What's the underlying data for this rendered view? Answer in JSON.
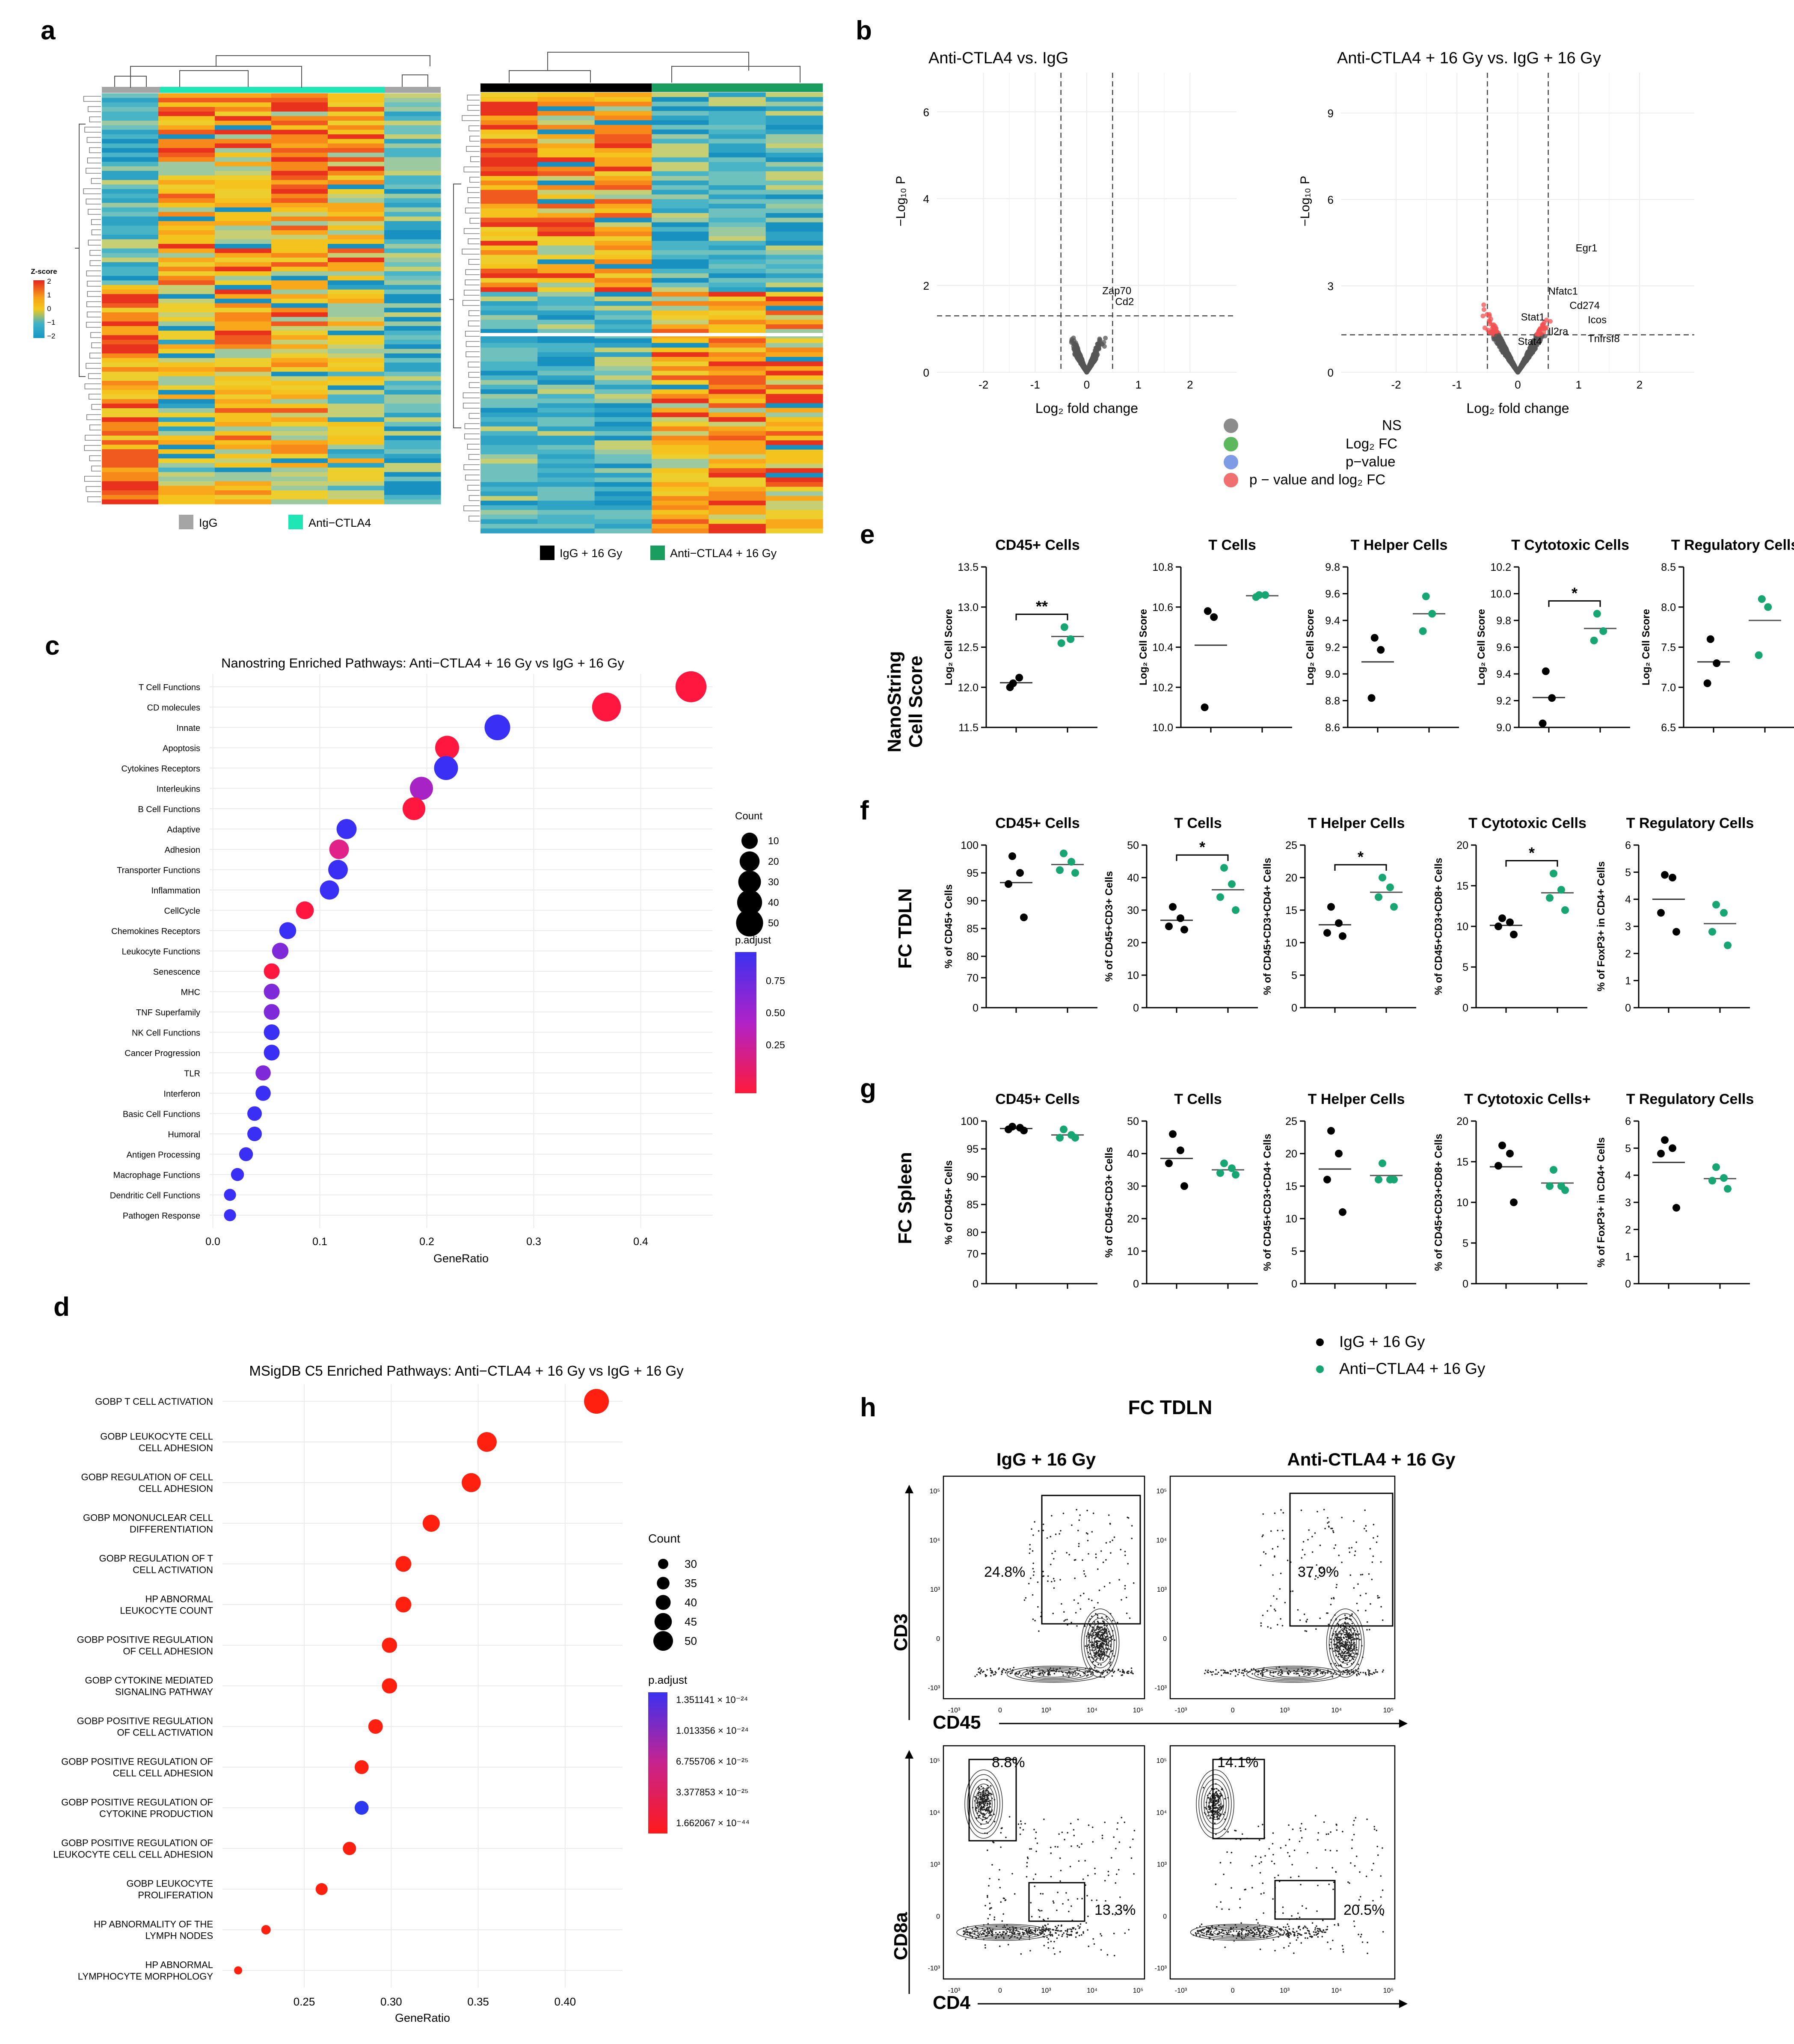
{
  "panel_labels": {
    "a": "a",
    "b": "b",
    "c": "c",
    "d": "d",
    "e": "e",
    "f": "f",
    "g": "g",
    "h": "h"
  },
  "panel_a": {
    "zscore_title": "Z-score",
    "zscore_ticks": [
      "2",
      "1",
      "0",
      "−1",
      "−2"
    ],
    "legend_left": [
      "IgG",
      "Anti−CTLA4"
    ],
    "legend_right": [
      "IgG + 16 Gy",
      "Anti−CTLA4 + 16 Gy"
    ],
    "colors": {
      "igg": "#a5a5a5",
      "anti": "#1ee6b4",
      "igg16": "#000000",
      "anti16": "#1a9e5f"
    }
  },
  "panel_b": {
    "title_left": "Anti-CTLA4 vs. IgG",
    "title_right": "Anti-CTLA4 + 16 Gy vs. IgG + 16 Gy",
    "ylabel": "−Log₁₀ P",
    "xlabel": "Log₂ fold change",
    "xticks": [
      "-2",
      "-1",
      "0",
      "1",
      "2"
    ],
    "yticks_left": [
      "0",
      "2",
      "4",
      "6"
    ],
    "yticks_right": [
      "0",
      "3",
      "6",
      "9"
    ],
    "genes_left": [
      "Zap70",
      "Cd2"
    ],
    "genes_right": [
      "Egr1",
      "Nfatc1",
      "Cd274",
      "Icos",
      "Stat1",
      "Il2ra",
      "Tnfrsf8",
      "Stat4"
    ],
    "legend": [
      "NS",
      "Log₂ FC",
      "p−value",
      "p − value and log₂ FC"
    ],
    "legend_colors": [
      "#8c8c8c",
      "#5cb85c",
      "#7e9be6",
      "#f07070"
    ]
  },
  "panel_c": {
    "title": "Nanostring Enriched Pathways: Anti−CTLA4 + 16 Gy vs IgG + 16 Gy",
    "xlabel": "GeneRatio",
    "count_title": "Count",
    "padj_title": "p.adjust",
    "count_labels": [
      "10",
      "20",
      "30",
      "40",
      "50"
    ],
    "padj_labels": [
      "0.75",
      "0.50",
      "0.25"
    ]
  },
  "panel_d": {
    "title": "MSigDB C5 Enriched Pathways: Anti−CTLA4 + 16 Gy vs IgG + 16 Gy",
    "xlabel": "GeneRatio",
    "count_title": "Count",
    "padj_title": "p.adjust",
    "count_labels": [
      "30",
      "35",
      "40",
      "45",
      "50"
    ],
    "padj_labels": [
      "1.351141 × 10⁻²⁴",
      "1.013356 × 10⁻²⁴",
      "6.755706 × 10⁻²⁵",
      "3.377853 × 10⁻²⁵",
      "1.662067 × 10⁻⁴⁴"
    ]
  },
  "panel_e": {
    "row_label_1": "NanoString",
    "row_label_2": "Cell Score",
    "ylabel": "Log₂ Cell Score",
    "plots": [
      {
        "title": "CD45+ Cells",
        "yticks": [
          "11.5",
          "12.0",
          "12.5",
          "13.0",
          "13.5"
        ],
        "sig": "**"
      },
      {
        "title": "T Cells",
        "yticks": [
          "10.0",
          "10.2",
          "10.4",
          "10.6",
          "10.8"
        ],
        "sig": ""
      },
      {
        "title": "T Helper Cells",
        "yticks": [
          "8.6",
          "8.8",
          "9.0",
          "9.2",
          "9.4",
          "9.6",
          "9.8"
        ],
        "sig": ""
      },
      {
        "title": "T Cytotoxic Cells",
        "yticks": [
          "9.0",
          "9.2",
          "9.4",
          "9.6",
          "9.8",
          "10.0",
          "10.2"
        ],
        "sig": "*"
      },
      {
        "title": "T Regulatory Cells",
        "yticks": [
          "6.5",
          "7.0",
          "7.5",
          "8.0",
          "8.5"
        ],
        "sig": ""
      }
    ]
  },
  "panel_f": {
    "row_label": "FC TDLN",
    "plots": [
      {
        "title": "CD45+ Cells",
        "ylabel": "% of CD45+ Cells",
        "yticks": [
          "0",
          "70",
          "80",
          "85",
          "90",
          "95",
          "100"
        ],
        "sig": ""
      },
      {
        "title": "T Cells",
        "ylabel": "% of CD45+CD3+ Cells",
        "yticks": [
          "0",
          "10",
          "20",
          "30",
          "40",
          "50"
        ],
        "sig": "*"
      },
      {
        "title": "T Helper Cells",
        "ylabel": "% of CD45+CD3+CD4+ Cells",
        "yticks": [
          "0",
          "5",
          "10",
          "15",
          "20",
          "25"
        ],
        "sig": "*"
      },
      {
        "title": "T Cytotoxic Cells",
        "ylabel": "% of CD45+CD3+CD8+ Cells",
        "yticks": [
          "0",
          "5",
          "10",
          "15",
          "20"
        ],
        "sig": "*"
      },
      {
        "title": "T Regulatory Cells",
        "ylabel": "% of FoxP3+ in CD4+ Cells",
        "yticks": [
          "0",
          "1",
          "2",
          "3",
          "4",
          "5",
          "6"
        ],
        "sig": ""
      }
    ]
  },
  "panel_g": {
    "row_label": "FC Spleen",
    "plots": [
      {
        "title": "CD45+ Cells",
        "ylabel": "% of CD45+ Cells",
        "yticks": [
          "0",
          "70",
          "80",
          "85",
          "90",
          "95",
          "100"
        ]
      },
      {
        "title": "T Cells",
        "ylabel": "% of CD45+CD3+ Cells",
        "yticks": [
          "0",
          "10",
          "20",
          "30",
          "40",
          "50"
        ]
      },
      {
        "title": "T Helper Cells",
        "ylabel": "% of CD45+CD3+CD4+ Cells",
        "yticks": [
          "0",
          "5",
          "10",
          "15",
          "20",
          "25"
        ]
      },
      {
        "title": "T Cytotoxic Cells+",
        "ylabel": "% of CD45+CD3+CD8+ Cells",
        "yticks": [
          "0",
          "5",
          "10",
          "15",
          "20"
        ]
      },
      {
        "title": "T Regulatory Cells",
        "ylabel": "% of FoxP3+ in CD4+ Cells",
        "yticks": [
          "0",
          "1",
          "2",
          "3",
          "4",
          "5",
          "6"
        ]
      }
    ],
    "legend": [
      "IgG + 16 Gy",
      "Anti−CTLA4 + 16 Gy"
    ],
    "colors": {
      "igg": "#000000",
      "anti": "#17a673"
    }
  },
  "panel_h": {
    "title": "FC TDLN",
    "col_titles": [
      "IgG + 16 Gy",
      "Anti-CTLA4 + 16 Gy"
    ],
    "axis_top_y": "CD3",
    "axis_top_x": "CD45",
    "axis_bot_y": "CD8a",
    "axis_bot_x": "CD4",
    "pct_top": [
      "24.8%",
      "37.9%"
    ],
    "pct_bot_cd8": [
      "8.8%",
      "14.1%"
    ],
    "pct_bot_cd4": [
      "13.3%",
      "20.5%"
    ],
    "flow_ticks_x": [
      "-10³",
      "0",
      "10³",
      "10⁴",
      "10⁵"
    ],
    "flow_ticks_y": [
      "10⁵",
      "10⁴",
      "10³",
      "0",
      "-10³"
    ]
  },
  "chart_data": [
    {
      "type": "scatter",
      "title": "Nanostring Enriched Pathways: Anti−CTLA4 + 16 Gy vs IgG + 16 Gy",
      "xlabel": "GeneRatio",
      "ylabel": "",
      "xlim": [
        0,
        0.47
      ],
      "xticks": [
        0,
        0.1,
        0.2,
        0.3,
        0.4
      ],
      "categories": [
        "T Cell Functions",
        "CD molecules",
        "Innate",
        "Apoptosis",
        "Cytokines Receptors",
        "Interleukins",
        "B Cell Functions",
        "Adaptive",
        "Adhesion",
        "Transporter Functions",
        "Inflammation",
        "CellCycle",
        "Chemokines Receptors",
        "Leukocyte Functions",
        "Senescence",
        "MHC",
        "TNF Superfamily",
        "NK Cell Functions",
        "Cancer Progression",
        "TLR",
        "Interferon",
        "Basic Cell Functions",
        "Humoral",
        "Antigen Processing",
        "Macrophage Functions",
        "Dendritic Cell Functions",
        "Pathogen Response"
      ],
      "x": [
        0.447,
        0.368,
        0.266,
        0.219,
        0.218,
        0.195,
        0.188,
        0.125,
        0.118,
        0.117,
        0.109,
        0.086,
        0.07,
        0.063,
        0.055,
        0.055,
        0.055,
        0.055,
        0.055,
        0.047,
        0.047,
        0.039,
        0.039,
        0.031,
        0.023,
        0.016,
        0.016
      ],
      "count": [
        57,
        47,
        34,
        28,
        28,
        25,
        24,
        16,
        15,
        15,
        14,
        11,
        9,
        8,
        7,
        7,
        7,
        7,
        7,
        6,
        6,
        5,
        5,
        4,
        3,
        2,
        2
      ],
      "p_adjust": [
        0.05,
        0.05,
        0.99,
        0.05,
        0.99,
        0.6,
        0.05,
        0.99,
        0.25,
        0.99,
        0.99,
        0.1,
        0.99,
        0.8,
        0.1,
        0.75,
        0.75,
        0.99,
        0.99,
        0.7,
        0.95,
        0.99,
        0.99,
        0.99,
        0.99,
        0.99,
        0.99
      ]
    },
    {
      "type": "scatter",
      "title": "MSigDB C5 Enriched Pathways: Anti−CTLA4 + 16 Gy vs IgG + 16 Gy",
      "xlabel": "GeneRatio",
      "ylabel": "",
      "xlim": [
        0.2,
        0.435
      ],
      "xticks": [
        0.25,
        0.3,
        0.35,
        0.4
      ],
      "categories": [
        "GOBP T CELL ACTIVATION",
        "GOBP LEUKOCYTE CELL CELL ADHESION",
        "GOBP REGULATION OF CELL CELL ADHESION",
        "GOBP MONONUCLEAR CELL DIFFERENTIATION",
        "GOBP REGULATION OF T CELL ACTIVATION",
        "HP ABNORMAL LEUKOCYTE COUNT",
        "GOBP POSITIVE REGULATION OF CELL ADHESION",
        "GOBP CYTOKINE MEDIATED SIGNALING PATHWAY",
        "GOBP POSITIVE REGULATION OF CELL ACTIVATION",
        "GOBP POSITIVE REGULATION OF CELL CELL ADHESION",
        "GOBP POSITIVE REGULATION OF CYTOKINE PRODUCTION",
        "GOBP POSITIVE REGULATION OF LEUKOCYTE CELL CELL ADHESION",
        "GOBP LEUKOCYTE PROLIFERATION",
        "HP ABNORMALITY OF THE LYMPH NODES",
        "HP ABNORMAL LYMPHOCYTE MORPHOLOGY"
      ],
      "x": [
        0.418,
        0.355,
        0.346,
        0.323,
        0.307,
        0.307,
        0.299,
        0.299,
        0.291,
        0.283,
        0.283,
        0.276,
        0.26,
        0.228,
        0.212
      ],
      "count": [
        53,
        45,
        44,
        41,
        39,
        39,
        38,
        38,
        37,
        36,
        36,
        35,
        33,
        29,
        27
      ],
      "p_adjust_level": [
        0,
        0,
        0,
        0,
        0,
        0,
        0,
        0,
        0,
        0,
        1,
        0,
        0,
        0,
        0
      ]
    },
    {
      "type": "scatter",
      "title": "NanoString Cell Score (Log2 Cell Score)",
      "series": [
        {
          "name": "CD45+ Cells",
          "igg": [
            12.05,
            12.12,
            12.0
          ],
          "anti": [
            12.75,
            12.6,
            12.55
          ],
          "ylim": [
            11.5,
            13.5
          ]
        },
        {
          "name": "T Cells",
          "igg": [
            10.58,
            10.55,
            10.1
          ],
          "anti": [
            10.66,
            10.66,
            10.65
          ],
          "ylim": [
            10.0,
            10.8
          ]
        },
        {
          "name": "T Helper Cells",
          "igg": [
            9.27,
            9.18,
            8.82
          ],
          "anti": [
            9.58,
            9.45,
            9.32
          ],
          "ylim": [
            8.6,
            9.8
          ]
        },
        {
          "name": "T Cytotoxic Cells",
          "igg": [
            9.42,
            9.22,
            9.03
          ],
          "anti": [
            9.85,
            9.72,
            9.65
          ],
          "ylim": [
            9.0,
            10.2
          ]
        },
        {
          "name": "T Regulatory Cells",
          "igg": [
            7.6,
            7.3,
            7.05
          ],
          "anti": [
            8.1,
            8.0,
            7.4
          ],
          "ylim": [
            6.5,
            8.5
          ]
        }
      ]
    },
    {
      "type": "scatter",
      "title": "FC TDLN",
      "series": [
        {
          "name": "CD45+ Cells",
          "igg": [
            98.0,
            95.0,
            93.0,
            87.0
          ],
          "anti": [
            98.5,
            97.0,
            95.5,
            95.0
          ]
        },
        {
          "name": "T Cells",
          "igg": [
            31.0,
            27.5,
            25.0,
            24.0
          ],
          "anti": [
            43.0,
            38.0,
            34.0,
            30.0
          ]
        },
        {
          "name": "T Helper Cells",
          "igg": [
            15.5,
            13.0,
            11.5,
            11.0
          ],
          "anti": [
            20.0,
            18.5,
            17.0,
            15.5
          ]
        },
        {
          "name": "T Cytotoxic Cells",
          "igg": [
            11.0,
            10.5,
            10.0,
            9.0
          ],
          "anti": [
            16.5,
            14.5,
            13.5,
            12.0
          ]
        },
        {
          "name": "T Regulatory Cells",
          "igg": [
            4.9,
            4.8,
            3.5,
            2.8
          ],
          "anti": [
            3.8,
            3.5,
            2.8,
            2.3
          ]
        }
      ]
    },
    {
      "type": "scatter",
      "title": "FC Spleen",
      "series": [
        {
          "name": "CD45+ Cells",
          "igg": [
            99.0,
            98.8,
            98.5,
            98.3
          ],
          "anti": [
            98.5,
            97.5,
            97.0,
            97.0
          ]
        },
        {
          "name": "T Cells",
          "igg": [
            46.0,
            41.0,
            37.0,
            30.0
          ],
          "anti": [
            37.0,
            35.5,
            34.0,
            33.5
          ]
        },
        {
          "name": "T Helper Cells",
          "igg": [
            23.5,
            20.0,
            16.0,
            11.0
          ],
          "anti": [
            18.5,
            16.0,
            16.0,
            16.0
          ]
        },
        {
          "name": "T Cytotoxic Cells+",
          "igg": [
            17.0,
            16.0,
            14.5,
            10.0
          ],
          "anti": [
            14.0,
            12.0,
            12.0,
            11.5
          ]
        },
        {
          "name": "T Regulatory Cells",
          "igg": [
            5.3,
            5.0,
            4.8,
            2.8
          ],
          "anti": [
            4.3,
            3.9,
            3.8,
            3.5
          ]
        }
      ]
    }
  ]
}
